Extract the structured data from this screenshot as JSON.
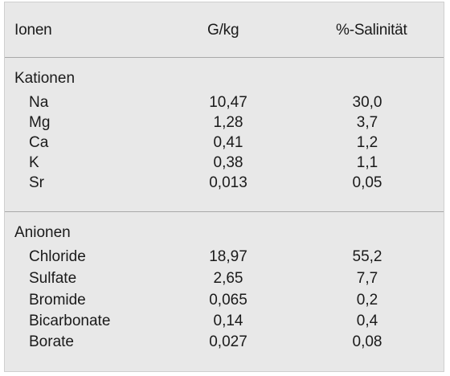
{
  "header": {
    "col_ionen": "Ionen",
    "col_gkg": "G/kg",
    "col_salinity": "%-Salinität"
  },
  "sections": [
    {
      "title": "Kationen",
      "rows": [
        {
          "name": "Na",
          "gkg": "10,47",
          "salinity": "30,0"
        },
        {
          "name": "Mg",
          "gkg": "1,28",
          "salinity": "3,7"
        },
        {
          "name": "Ca",
          "gkg": "0,41",
          "salinity": "1,2"
        },
        {
          "name": "K",
          "gkg": "0,38",
          "salinity": "1,1"
        },
        {
          "name": "Sr",
          "gkg": "0,013",
          "salinity": "0,05"
        }
      ]
    },
    {
      "title": "Anionen",
      "rows": [
        {
          "name": "Chloride",
          "gkg": "18,97",
          "salinity": "55,2"
        },
        {
          "name": "Sulfate",
          "gkg": "2,65",
          "salinity": "7,7"
        },
        {
          "name": "Bromide",
          "gkg": "0,065",
          "salinity": "0,2"
        },
        {
          "name": "Bicarbonate",
          "gkg": "0,14",
          "salinity": "0,4"
        },
        {
          "name": "Borate",
          "gkg": "0,027",
          "salinity": "0,08"
        }
      ]
    }
  ]
}
